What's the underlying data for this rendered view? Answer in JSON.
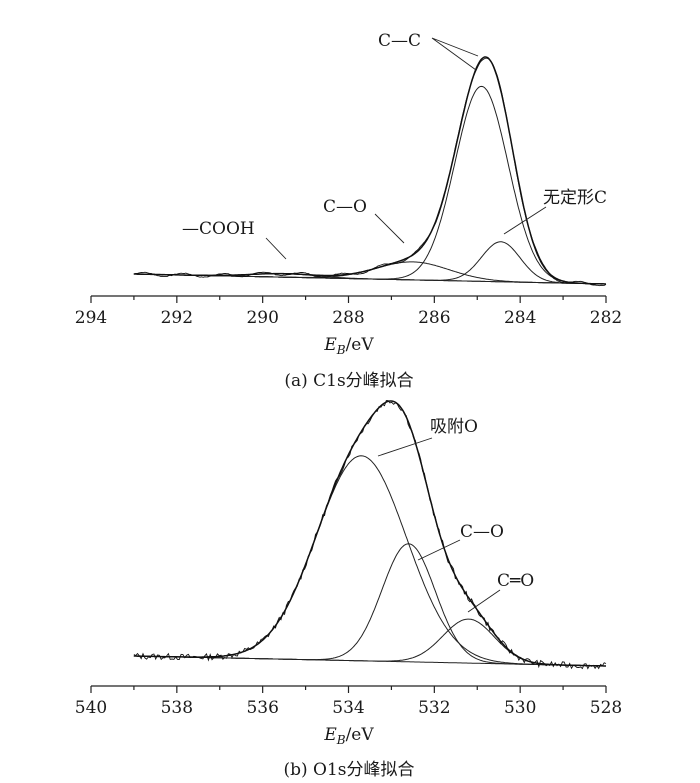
{
  "chart_data": [
    {
      "type": "line",
      "caption": "(a) C1s分峰拟合",
      "xlabel": "E",
      "xlabel_sub": "B",
      "xlabel_unit": "/eV",
      "xlim": [
        294,
        282
      ],
      "x_reversed": true,
      "xticks": [
        294,
        292,
        290,
        288,
        286,
        284,
        282
      ],
      "ylabel": "",
      "y_axis_visible": false,
      "grid": false,
      "background": {
        "start": 293,
        "end": 282,
        "start_level": 10,
        "end_level": 0
      },
      "series": [
        {
          "name": "—COOH",
          "center": 289.5,
          "height": 3.5,
          "width": 0.75
        },
        {
          "name": "C—O",
          "center": 286.5,
          "height": 18,
          "width": 0.85
        },
        {
          "name": "C—C",
          "center": 284.9,
          "height": 195,
          "width": 0.62
        },
        {
          "name": "无定形C",
          "center": 284.45,
          "height": 40,
          "width": 0.45
        }
      ],
      "annotations": [
        "C—C",
        "C—O",
        "—COOH",
        "无定形C"
      ]
    },
    {
      "type": "line",
      "caption": "(b) O1s分峰拟合",
      "xlabel": "E",
      "xlabel_sub": "B",
      "xlabel_unit": "/eV",
      "xlim": [
        540,
        528
      ],
      "x_reversed": true,
      "xticks": [
        540,
        538,
        536,
        534,
        532,
        530,
        528
      ],
      "ylabel": "",
      "y_axis_visible": false,
      "grid": false,
      "background": {
        "start": 539,
        "end": 528,
        "start_level": 0,
        "end_level": -10
      },
      "series": [
        {
          "name": "吸附O",
          "center": 533.7,
          "height": 205,
          "width": 1.05
        },
        {
          "name": "C—O",
          "center": 532.6,
          "height": 118,
          "width": 0.62
        },
        {
          "name": "C═O",
          "center": 531.2,
          "height": 44,
          "width": 0.6
        }
      ],
      "annotations": [
        "吸附O",
        "C—O",
        "C═O"
      ]
    }
  ]
}
